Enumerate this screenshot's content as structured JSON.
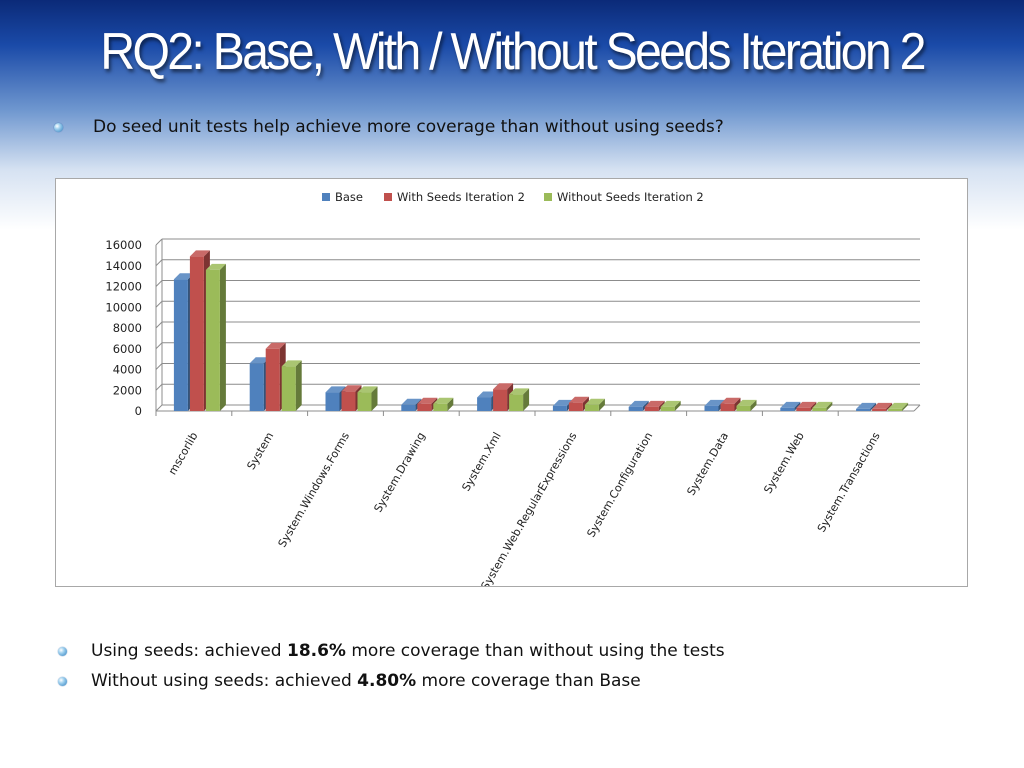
{
  "slide": {
    "title": "RQ2: Base, With / Without Seeds Iteration 2",
    "question": "Do seed unit tests help achieve more coverage than without using seeds?",
    "findings": [
      {
        "prefix": "Using seeds: achieved ",
        "value": "18.6%",
        "suffix": " more coverage than without using the tests"
      },
      {
        "prefix": "Without using seeds: achieved ",
        "value": "4.80%",
        "suffix": " more coverage than Base"
      }
    ]
  },
  "colors": {
    "base": "#4f81bd",
    "with_seeds": "#c0504d",
    "without_seeds": "#9bbb59"
  },
  "chart_data": {
    "type": "bar",
    "categories": [
      "mscorlib",
      "System",
      "System.Windows.Forms",
      "System.Drawing",
      "System.Xml",
      "System.Web.RegularExpressions",
      "System.Configuration",
      "System.Data",
      "System.Web",
      "System.Transactions"
    ],
    "series": [
      {
        "name": "Base",
        "values": [
          12700,
          4600,
          1800,
          600,
          1300,
          500,
          400,
          500,
          300,
          200
        ]
      },
      {
        "name": "With Seeds Iteration 2",
        "values": [
          14900,
          6000,
          1900,
          700,
          2100,
          800,
          400,
          700,
          300,
          200
        ]
      },
      {
        "name": "Without Seeds Iteration 2",
        "values": [
          13600,
          4300,
          1800,
          700,
          1600,
          600,
          400,
          500,
          300,
          200
        ]
      }
    ],
    "yticks": [
      "0",
      "2000",
      "4000",
      "6000",
      "8000",
      "10000",
      "12000",
      "14000",
      "16000"
    ],
    "ylim": [
      0,
      16000
    ],
    "grid": true,
    "legend_position": "top",
    "three_d": true
  }
}
